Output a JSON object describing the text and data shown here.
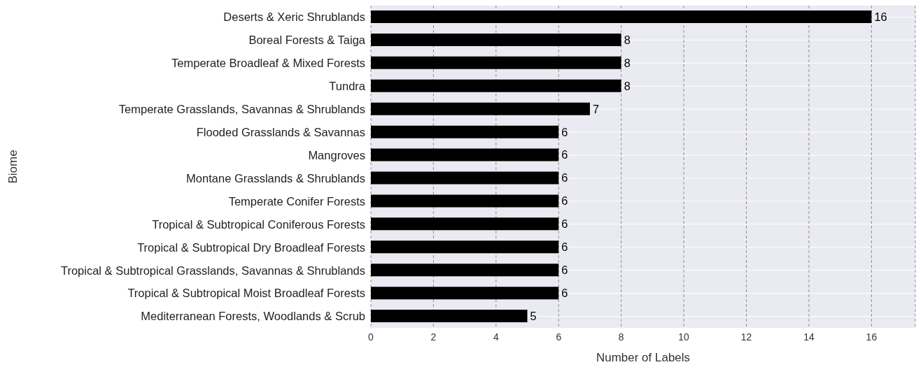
{
  "chart_data": {
    "type": "bar",
    "orientation": "horizontal",
    "xlabel": "Number of Labels",
    "ylabel": "Biome",
    "categories": [
      "Deserts & Xeric Shrublands",
      "Boreal Forests & Taiga",
      "Temperate Broadleaf & Mixed Forests",
      "Tundra",
      "Temperate Grasslands, Savannas & Shrublands",
      "Flooded Grasslands & Savannas",
      "Mangroves",
      "Montane Grasslands & Shrublands",
      "Temperate Conifer Forests",
      "Tropical & Subtropical Coniferous Forests",
      "Tropical & Subtropical Dry Broadleaf Forests",
      "Tropical & Subtropical Grasslands, Savannas & Shrublands",
      "Tropical & Subtropical Moist Broadleaf Forests",
      "Mediterranean Forests, Woodlands & Scrub"
    ],
    "values": [
      16,
      8,
      8,
      8,
      7,
      6,
      6,
      6,
      6,
      6,
      6,
      6,
      6,
      5
    ],
    "color": "#000000",
    "xlim": [
      0,
      17.4
    ],
    "xticks": [
      0,
      2,
      4,
      6,
      8,
      10,
      12,
      14,
      16
    ],
    "grid": true,
    "data_labels": true
  }
}
